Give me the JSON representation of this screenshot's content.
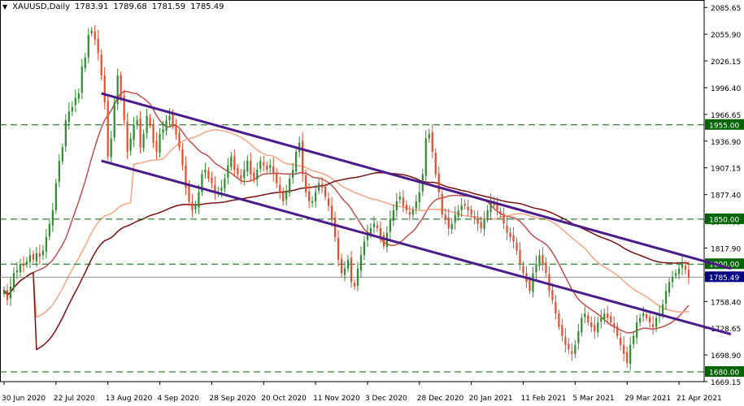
{
  "header": {
    "icon": "triangle-down-icon",
    "symbol": "XAUUSD,Daily",
    "ohlc": [
      "1783.91",
      "1789.68",
      "1781.59",
      "1785.49"
    ]
  },
  "chart_data": {
    "type": "candlestick",
    "title": "XAUUSD,Daily",
    "y_range": [
      1669.15,
      2094
    ],
    "y_ticks": [
      "2085.65",
      "2055.90",
      "2026.15",
      "1996.40",
      "1966.65",
      "1936.90",
      "1907.15",
      "1877.40",
      "1847.65",
      "1817.90",
      "1788.15",
      "1758.40",
      "1728.65",
      "1698.90",
      "1669.15"
    ],
    "x_ticks": [
      {
        "label": "30 Jun 2020",
        "i": 0
      },
      {
        "label": "22 Jul 2020",
        "i": 16
      },
      {
        "label": "13 Aug 2020",
        "i": 32
      },
      {
        "label": "4 Sep 2020",
        "i": 48
      },
      {
        "label": "28 Sep 2020",
        "i": 64
      },
      {
        "label": "20 Oct 2020",
        "i": 80
      },
      {
        "label": "11 Nov 2020",
        "i": 96
      },
      {
        "label": "3 Dec 2020",
        "i": 112
      },
      {
        "label": "28 Dec 2020",
        "i": 128
      },
      {
        "label": "20 Jan 2021",
        "i": 144
      },
      {
        "label": "11 Feb 2021",
        "i": 160
      },
      {
        "label": "5 Mar 2021",
        "i": 176
      },
      {
        "label": "29 Mar 2021",
        "i": 192
      },
      {
        "label": "21 Apr 2021",
        "i": 208
      }
    ],
    "levels": [
      {
        "value": 1955.0,
        "label": "1955.00",
        "color": "#006400"
      },
      {
        "value": 1850.0,
        "label": "1850.00",
        "color": "#006400"
      },
      {
        "value": 1800.0,
        "label": "1800.00",
        "color": "#006400"
      },
      {
        "value": 1680.0,
        "label": "1680.00",
        "color": "#006400"
      }
    ],
    "current_price": {
      "value": 1785.49,
      "label": "1785.49",
      "color": "#000080"
    },
    "closes": [
      1771,
      1760,
      1775,
      1790,
      1793,
      1800,
      1798,
      1803,
      1810,
      1805,
      1812,
      1808,
      1815,
      1830,
      1845,
      1860,
      1890,
      1915,
      1930,
      1960,
      1970,
      1975,
      1985,
      1990,
      2020,
      2030,
      2055,
      2060,
      2050,
      2035,
      2010,
      1980,
      1920,
      1940,
      1980,
      2010,
      1985,
      1960,
      1925,
      1940,
      1955,
      1960,
      1930,
      1945,
      1965,
      1955,
      1935,
      1925,
      1945,
      1950,
      1960,
      1965,
      1955,
      1945,
      1930,
      1910,
      1885,
      1870,
      1860,
      1865,
      1880,
      1900,
      1905,
      1895,
      1890,
      1880,
      1880,
      1885,
      1895,
      1910,
      1920,
      1905,
      1900,
      1895,
      1905,
      1915,
      1900,
      1895,
      1905,
      1915,
      1910,
      1905,
      1910,
      1900,
      1890,
      1880,
      1870,
      1880,
      1895,
      1905,
      1925,
      1935,
      1900,
      1880,
      1870,
      1870,
      1880,
      1890,
      1885,
      1875,
      1865,
      1850,
      1830,
      1805,
      1790,
      1795,
      1805,
      1780,
      1775,
      1795,
      1810,
      1825,
      1835,
      1840,
      1845,
      1840,
      1830,
      1820,
      1835,
      1850,
      1860,
      1870,
      1875,
      1865,
      1860,
      1855,
      1860,
      1870,
      1880,
      1900,
      1940,
      1945,
      1925,
      1900,
      1880,
      1855,
      1850,
      1840,
      1845,
      1855,
      1860,
      1865,
      1865,
      1860,
      1855,
      1850,
      1845,
      1840,
      1850,
      1860,
      1870,
      1865,
      1860,
      1855,
      1845,
      1835,
      1830,
      1825,
      1815,
      1800,
      1790,
      1780,
      1770,
      1790,
      1800,
      1810,
      1800,
      1790,
      1770,
      1760,
      1745,
      1730,
      1720,
      1710,
      1705,
      1700,
      1710,
      1725,
      1740,
      1745,
      1735,
      1730,
      1725,
      1735,
      1740,
      1745,
      1740,
      1735,
      1730,
      1720,
      1710,
      1700,
      1690,
      1710,
      1720,
      1735,
      1740,
      1745,
      1740,
      1735,
      1730,
      1740,
      1745,
      1755,
      1770,
      1780,
      1785,
      1790,
      1795,
      1800,
      1794,
      1785.49
    ],
    "trendlines": [
      {
        "from": {
          "i": 30,
          "v": 1990
        },
        "to": {
          "i": 224,
          "v": 1795
        },
        "color": "#4b1b8c"
      },
      {
        "from": {
          "i": 30,
          "v": 1915
        },
        "to": {
          "i": 224,
          "v": 1722
        },
        "color": "#4b1b8c"
      }
    ],
    "moving_averages": [
      {
        "period": 20,
        "color": "#c0504d"
      },
      {
        "period": 50,
        "color": "#f4a582"
      },
      {
        "period": 100,
        "color": "#7b1010"
      }
    ],
    "colors": {
      "bull": "#2e8b2e",
      "bear": "#e84a2a",
      "grid": "#006400",
      "axis": "#000000"
    }
  }
}
